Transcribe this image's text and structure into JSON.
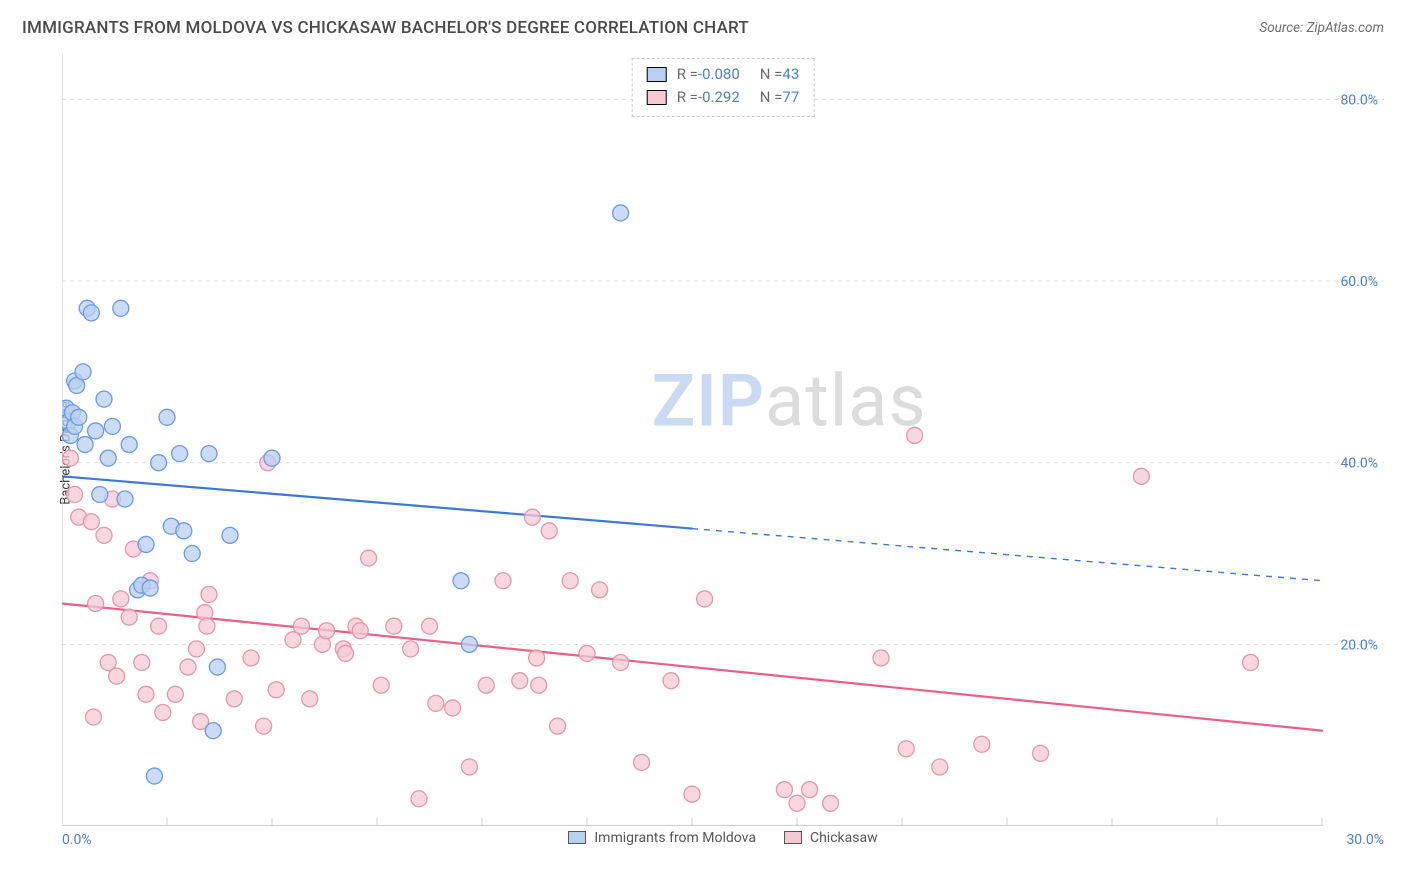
{
  "title": "IMMIGRANTS FROM MOLDOVA VS CHICKASAW BACHELOR'S DEGREE CORRELATION CHART",
  "source_prefix": "Source: ",
  "source_name": "ZipAtlas.com",
  "ylabel": "Bachelor's Degree",
  "watermark": {
    "zip": "ZIP",
    "atlas": "atlas"
  },
  "chart": {
    "type": "scatter",
    "xlim": [
      0,
      30
    ],
    "ylim": [
      0,
      85
    ],
    "x_zero_label": "0.0%",
    "x_max_label": "30.0%",
    "y_grid": [
      20,
      40,
      60,
      80
    ],
    "y_grid_labels": [
      "20.0%",
      "40.0%",
      "60.0%",
      "80.0%"
    ],
    "x_ticks": [
      0,
      2.5,
      5,
      7.5,
      10,
      12.5,
      15,
      17.5,
      20,
      22.5,
      25,
      27.5,
      30
    ],
    "grid_color": "#dcdcdc",
    "axis_color": "#cfcfcf",
    "ytick_label_color": "#4b7ecf",
    "background": "#ffffff",
    "marker_radius": 8,
    "marker_stroke_width": 1.3,
    "line_width": 2.2,
    "series": [
      {
        "key": "moldova",
        "label": "Immigrants from Moldova",
        "fill": "#b8cff2",
        "stroke": "#6a9be0",
        "line_color": "#3d78d6",
        "r": -0.08,
        "r_display": "-0.080",
        "n": 43,
        "trend": {
          "solid_to_x": 15,
          "y0": 38.5,
          "y30": 27.0
        },
        "points": [
          [
            0.1,
            46
          ],
          [
            0.15,
            44.5
          ],
          [
            0.2,
            43
          ],
          [
            0.25,
            45.5
          ],
          [
            0.3,
            44
          ],
          [
            0.3,
            49
          ],
          [
            0.35,
            48.5
          ],
          [
            0.4,
            45
          ],
          [
            0.5,
            50
          ],
          [
            0.55,
            42
          ],
          [
            0.6,
            57
          ],
          [
            0.7,
            56.5
          ],
          [
            0.8,
            43.5
          ],
          [
            0.9,
            36.5
          ],
          [
            1.0,
            47
          ],
          [
            1.1,
            40.5
          ],
          [
            1.2,
            44
          ],
          [
            1.4,
            57
          ],
          [
            1.5,
            36
          ],
          [
            1.6,
            42
          ],
          [
            1.8,
            26
          ],
          [
            1.9,
            26.5
          ],
          [
            2.0,
            31
          ],
          [
            2.1,
            26.2
          ],
          [
            2.2,
            5.5
          ],
          [
            2.3,
            40
          ],
          [
            2.5,
            45
          ],
          [
            2.6,
            33
          ],
          [
            2.8,
            41
          ],
          [
            2.9,
            32.5
          ],
          [
            3.1,
            30
          ],
          [
            3.5,
            41
          ],
          [
            3.6,
            10.5
          ],
          [
            3.7,
            17.5
          ],
          [
            4.0,
            32
          ],
          [
            5.0,
            40.5
          ],
          [
            9.5,
            27
          ],
          [
            9.7,
            20
          ],
          [
            13.3,
            67.5
          ]
        ]
      },
      {
        "key": "chickasaw",
        "label": "Chickasaw",
        "fill": "#f6c8d4",
        "stroke": "#e296ad",
        "line_color": "#e95f8a",
        "r": -0.292,
        "r_display": "-0.292",
        "n": 77,
        "trend": {
          "solid_to_x": 30,
          "y0": 24.5,
          "y30": 10.5
        },
        "points": [
          [
            0.2,
            40.5
          ],
          [
            0.3,
            36.5
          ],
          [
            0.4,
            34
          ],
          [
            0.7,
            33.5
          ],
          [
            0.75,
            12
          ],
          [
            0.8,
            24.5
          ],
          [
            1.0,
            32
          ],
          [
            1.1,
            18
          ],
          [
            1.2,
            36
          ],
          [
            1.3,
            16.5
          ],
          [
            1.4,
            25
          ],
          [
            1.6,
            23
          ],
          [
            1.7,
            30.5
          ],
          [
            1.9,
            18
          ],
          [
            2.0,
            14.5
          ],
          [
            2.1,
            27
          ],
          [
            2.3,
            22
          ],
          [
            2.4,
            12.5
          ],
          [
            2.7,
            14.5
          ],
          [
            3.0,
            17.5
          ],
          [
            3.2,
            19.5
          ],
          [
            3.3,
            11.5
          ],
          [
            3.4,
            23.5
          ],
          [
            3.45,
            22
          ],
          [
            3.5,
            25.5
          ],
          [
            4.1,
            14
          ],
          [
            4.5,
            18.5
          ],
          [
            4.8,
            11
          ],
          [
            4.9,
            40
          ],
          [
            5.1,
            15
          ],
          [
            5.5,
            20.5
          ],
          [
            5.7,
            22
          ],
          [
            5.9,
            14
          ],
          [
            6.2,
            20
          ],
          [
            6.3,
            21.5
          ],
          [
            6.7,
            19.5
          ],
          [
            6.75,
            19
          ],
          [
            7.0,
            22
          ],
          [
            7.1,
            21.5
          ],
          [
            7.3,
            29.5
          ],
          [
            7.6,
            15.5
          ],
          [
            7.9,
            22
          ],
          [
            8.3,
            19.5
          ],
          [
            8.5,
            3
          ],
          [
            8.75,
            22
          ],
          [
            8.9,
            13.5
          ],
          [
            9.3,
            13
          ],
          [
            9.7,
            6.5
          ],
          [
            10.1,
            15.5
          ],
          [
            10.5,
            27
          ],
          [
            10.9,
            16
          ],
          [
            11.2,
            34
          ],
          [
            11.3,
            18.5
          ],
          [
            11.35,
            15.5
          ],
          [
            11.6,
            32.5
          ],
          [
            11.8,
            11
          ],
          [
            12.1,
            27
          ],
          [
            12.5,
            19
          ],
          [
            12.8,
            26
          ],
          [
            13.3,
            18
          ],
          [
            13.8,
            7
          ],
          [
            14.5,
            16
          ],
          [
            15.0,
            3.5
          ],
          [
            15.3,
            25
          ],
          [
            17.2,
            4
          ],
          [
            17.5,
            2.5
          ],
          [
            17.8,
            4
          ],
          [
            18.3,
            2.5
          ],
          [
            19.5,
            18.5
          ],
          [
            20.1,
            8.5
          ],
          [
            20.3,
            43
          ],
          [
            20.9,
            6.5
          ],
          [
            21.9,
            9
          ],
          [
            23.3,
            8
          ],
          [
            25.7,
            38.5
          ],
          [
            28.3,
            18
          ]
        ]
      }
    ]
  },
  "stats_legend_labels": {
    "r": "R = ",
    "n": "N = "
  }
}
